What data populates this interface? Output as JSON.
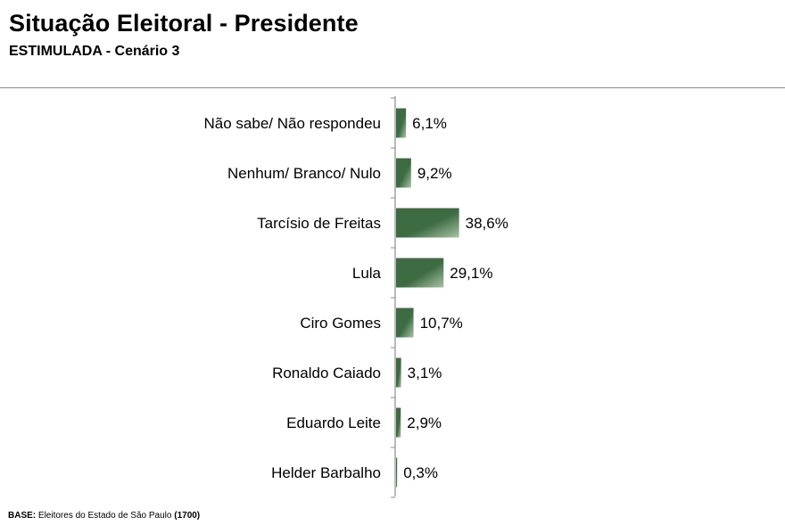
{
  "header": {
    "title": "Situação Eleitoral - Presidente",
    "subtitle": "ESTIMULADA - Cenário 3"
  },
  "footer": {
    "base_label": "BASE:",
    "base_text": "Eleitores do Estado de São Paulo",
    "base_count": "(1700)"
  },
  "chart_data": {
    "type": "bar",
    "orientation": "horizontal",
    "categories": [
      "Não sabe/ Não respondeu",
      "Nenhum/ Branco/ Nulo",
      "Tarcísio de Freitas",
      "Lula",
      "Ciro Gomes",
      "Ronaldo Caiado",
      "Eduardo Leite",
      "Helder Barbalho"
    ],
    "values": [
      6.1,
      9.2,
      38.6,
      29.1,
      10.7,
      3.1,
      2.9,
      0.3
    ],
    "value_labels": [
      "6,1%",
      "9,2%",
      "38,6%",
      "29,1%",
      "10,7%",
      "3,1%",
      "2,9%",
      "0,3%"
    ],
    "unit": "%",
    "xlim": [
      0,
      100
    ],
    "grid": false,
    "legend": "none",
    "bar_color": "#3d6b42"
  }
}
